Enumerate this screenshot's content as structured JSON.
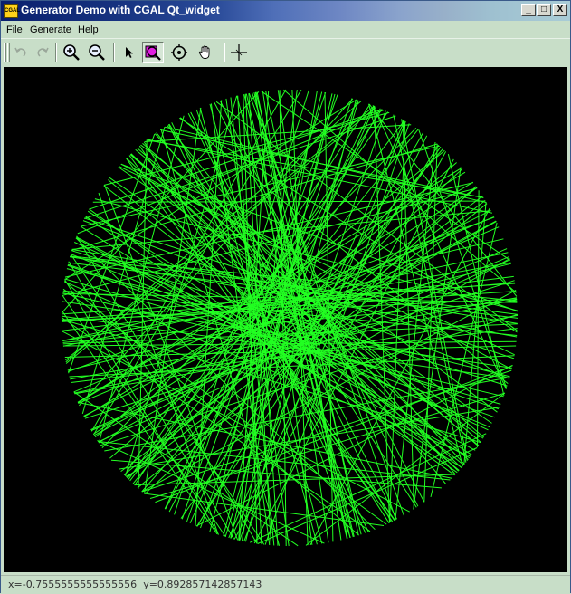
{
  "window": {
    "title": "Generator Demo with CGAL Qt_widget",
    "app_icon_label": "CGAL",
    "controls": {
      "minimize": "_",
      "maximize": "□",
      "close": "X"
    }
  },
  "menubar": {
    "items": [
      {
        "label": "File",
        "mnemonic": "F",
        "rest": "ile"
      },
      {
        "label": "Generate",
        "mnemonic": "G",
        "rest": "enerate"
      },
      {
        "label": "Help",
        "mnemonic": "H",
        "rest": "elp"
      }
    ]
  },
  "toolbar": {
    "buttons": [
      {
        "name": "undo",
        "icon": "undo-icon",
        "enabled": false
      },
      {
        "name": "redo",
        "icon": "redo-icon",
        "enabled": false
      },
      {
        "name": "zoom-in",
        "icon": "zoom-in-icon",
        "enabled": true
      },
      {
        "name": "zoom-out",
        "icon": "zoom-out-icon",
        "enabled": true
      },
      {
        "name": "select",
        "icon": "arrow-pointer-icon",
        "enabled": true
      },
      {
        "name": "zoom-rect",
        "icon": "zoom-rect-icon",
        "enabled": true,
        "pressed": true
      },
      {
        "name": "focus",
        "icon": "target-icon",
        "enabled": true
      },
      {
        "name": "pan",
        "icon": "hand-icon",
        "enabled": true
      },
      {
        "name": "axes",
        "icon": "crosshair-icon",
        "enabled": true
      }
    ]
  },
  "canvas": {
    "background": "#000000",
    "segment_color": "#22ff22",
    "content": "random line segments generated inside a disc"
  },
  "status": {
    "x_label": "x=",
    "x_value": "-0.7555555555555556",
    "y_label": "y=",
    "y_value": "0.892857142857143"
  },
  "colors": {
    "window_bg": "#c8dec8",
    "titlebar_start": "#0a1f6e",
    "titlebar_end": "#a9ccd6",
    "accent_pressed_icon": "#e020e0"
  }
}
